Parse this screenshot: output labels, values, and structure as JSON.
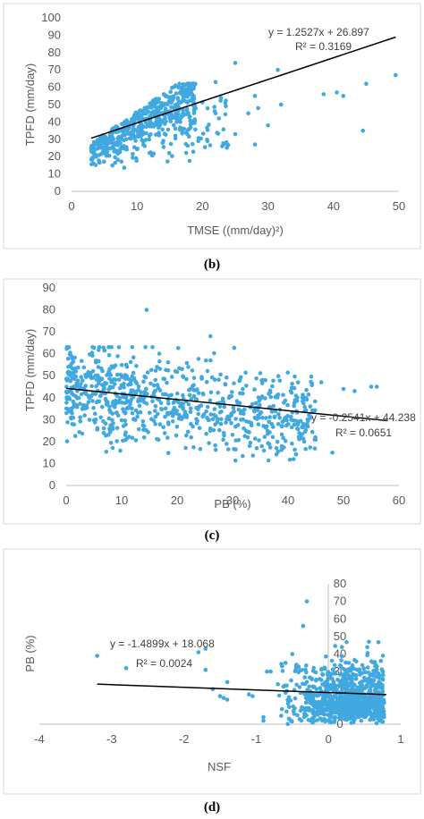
{
  "colors": {
    "point": "#41a8e0",
    "trend": "#000000",
    "frame": "#d9d9d9",
    "axis": "#bfbfbf",
    "text": "#595959"
  },
  "chart_data": [
    {
      "type": "scatter",
      "caption": "(b)",
      "xlabel": "TMSE ((mm/day)²)",
      "ylabel": "TPFD (mm/day)",
      "xlim": [
        0,
        50
      ],
      "ylim": [
        0,
        100
      ],
      "xticks": [
        0,
        10,
        20,
        30,
        40,
        50
      ],
      "yticks": [
        0,
        10,
        20,
        30,
        40,
        50,
        60,
        70,
        80,
        90,
        100
      ],
      "grid": false,
      "trendline": {
        "slope": 1.2527,
        "intercept": 26.897,
        "x_range": [
          3,
          49.5
        ]
      },
      "equation": "y = 1.2527x + 26.897",
      "r2": "R² = 0.3169",
      "outliers": [
        [
          25,
          74
        ],
        [
          22,
          63
        ],
        [
          28,
          55
        ],
        [
          31.5,
          70
        ],
        [
          30,
          38
        ],
        [
          32,
          50
        ],
        [
          38.5,
          56
        ],
        [
          40.5,
          57
        ],
        [
          41.5,
          55
        ],
        [
          44.5,
          35
        ],
        [
          45,
          62
        ],
        [
          49.5,
          67
        ],
        [
          28,
          27
        ],
        [
          23,
          26
        ],
        [
          25,
          33
        ],
        [
          22,
          45
        ],
        [
          27,
          45
        ],
        [
          28.5,
          48
        ]
      ]
    },
    {
      "type": "scatter",
      "caption": "(c)",
      "xlabel": "PB (%)",
      "ylabel": "TPFD (mm/day)",
      "xlim": [
        0,
        60
      ],
      "ylim": [
        0,
        90
      ],
      "xticks": [
        0,
        10,
        20,
        30,
        40,
        50,
        60
      ],
      "yticks": [
        0,
        10,
        20,
        30,
        40,
        50,
        60,
        70,
        80,
        90
      ],
      "grid": false,
      "trendline": {
        "slope": -0.2541,
        "intercept": 44.238,
        "x_range": [
          0,
          58
        ]
      },
      "equation": "y = -0.2541x + 44.238",
      "r2": "R² = 0.0651",
      "outliers": [
        [
          14.5,
          80
        ],
        [
          26,
          68
        ],
        [
          55,
          45
        ],
        [
          56,
          45
        ],
        [
          50,
          44
        ],
        [
          48,
          15
        ],
        [
          52,
          43
        ],
        [
          44,
          36
        ],
        [
          46,
          47
        ],
        [
          41,
          12
        ]
      ]
    },
    {
      "type": "scatter",
      "caption": "(d)",
      "xlabel": "NSF",
      "ylabel": "PB (%)",
      "xlim": [
        -4,
        1
      ],
      "ylim": [
        0,
        80
      ],
      "xticks": [
        -4,
        -3,
        -2,
        -1,
        0,
        1
      ],
      "yticks": [
        0,
        10,
        20,
        30,
        40,
        50,
        60,
        70,
        80
      ],
      "grid": false,
      "trendline": {
        "slope": -1.4899,
        "intercept": 18.068,
        "x_range": [
          -3.2,
          0.8
        ]
      },
      "equation": "y = -1.4899x + 18.068",
      "r2": "R² = 0.0024",
      "outliers": [
        [
          -3.2,
          39
        ],
        [
          -2.8,
          32
        ],
        [
          -1.8,
          41
        ],
        [
          -1.7,
          43
        ],
        [
          -1.7,
          31
        ],
        [
          -1.6,
          20
        ],
        [
          -1.5,
          16
        ],
        [
          -1.45,
          15
        ],
        [
          -1.4,
          14
        ],
        [
          -1.4,
          24
        ],
        [
          -1.1,
          17
        ],
        [
          -1.05,
          16
        ],
        [
          -0.9,
          2
        ],
        [
          -0.85,
          30
        ],
        [
          -0.8,
          30
        ],
        [
          -0.6,
          22
        ],
        [
          -0.5,
          40
        ],
        [
          -0.3,
          70
        ],
        [
          -0.35,
          56
        ],
        [
          -0.9,
          4
        ]
      ]
    }
  ]
}
